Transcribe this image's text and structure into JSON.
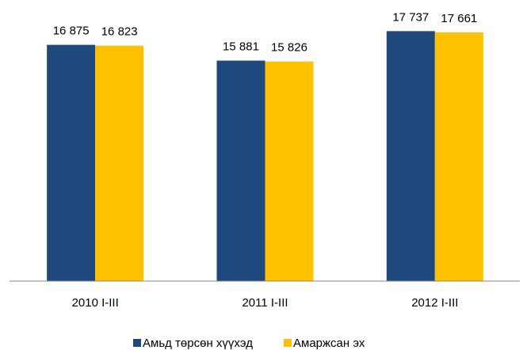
{
  "chart_data": {
    "type": "bar",
    "categories": [
      "2010 I-III",
      "2011 I-III",
      "2012 I-III"
    ],
    "series": [
      {
        "name": "Амьд төрсөн хүүхэд",
        "color": "#1f497d",
        "values": [
          16875,
          15881,
          17737
        ],
        "value_labels": [
          "16 875",
          "15 881",
          "17 737"
        ]
      },
      {
        "name": "Амаржсан эх",
        "color": "#ffc000",
        "values": [
          16823,
          15826,
          17661
        ],
        "value_labels": [
          "16 823",
          "15 826",
          "17 661"
        ]
      }
    ],
    "ylim": [
      2000,
      18700
    ],
    "legend": "bottom"
  }
}
